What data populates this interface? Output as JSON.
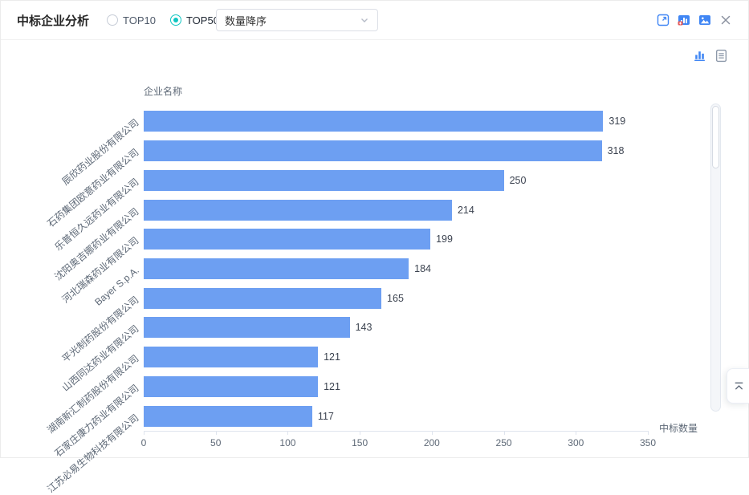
{
  "panel": {
    "title": "中标企业分析",
    "radios": [
      {
        "label": "TOP10",
        "selected": false
      },
      {
        "label": "TOP50",
        "selected": true
      }
    ],
    "sort_select": {
      "value": "数量降序"
    },
    "header_icons": [
      "fullscreen-icon",
      "data-view-icon",
      "image-export-icon",
      "close-icon"
    ],
    "view_toggle_icons": [
      "bar-chart-view-icon",
      "table-view-icon"
    ]
  },
  "colors": {
    "bar": "#6d9ff2",
    "radio_active": "#0fc6c2",
    "icon_blue": "#4086f4",
    "icon_red": "#e65a5a"
  },
  "chart_data": {
    "type": "bar",
    "orientation": "horizontal",
    "title": "",
    "ylabel": "企业名称",
    "xlabel": "中标数量",
    "categories": [
      "辰欣药业股份有限公司",
      "石药集团欧意药业有限公司",
      "乐普恒久远药业有限公司",
      "沈阳奥吉娜药业有限公司",
      "河北瑞森药业有限公司",
      "Bayer S.p.A.",
      "平光制药股份有限公司",
      "山西同达药业有限公司",
      "湖南新汇制药股份有限公司",
      "石家庄康力药业有限公司",
      "江苏必易生物科技有限公司"
    ],
    "values": [
      319,
      318,
      250,
      214,
      199,
      184,
      165,
      143,
      121,
      121,
      117
    ],
    "xlim": [
      0,
      350
    ],
    "xticks": [
      0,
      50,
      100,
      150,
      200,
      250,
      300,
      350
    ],
    "grid": false,
    "value_labels": true,
    "legend": "none"
  }
}
